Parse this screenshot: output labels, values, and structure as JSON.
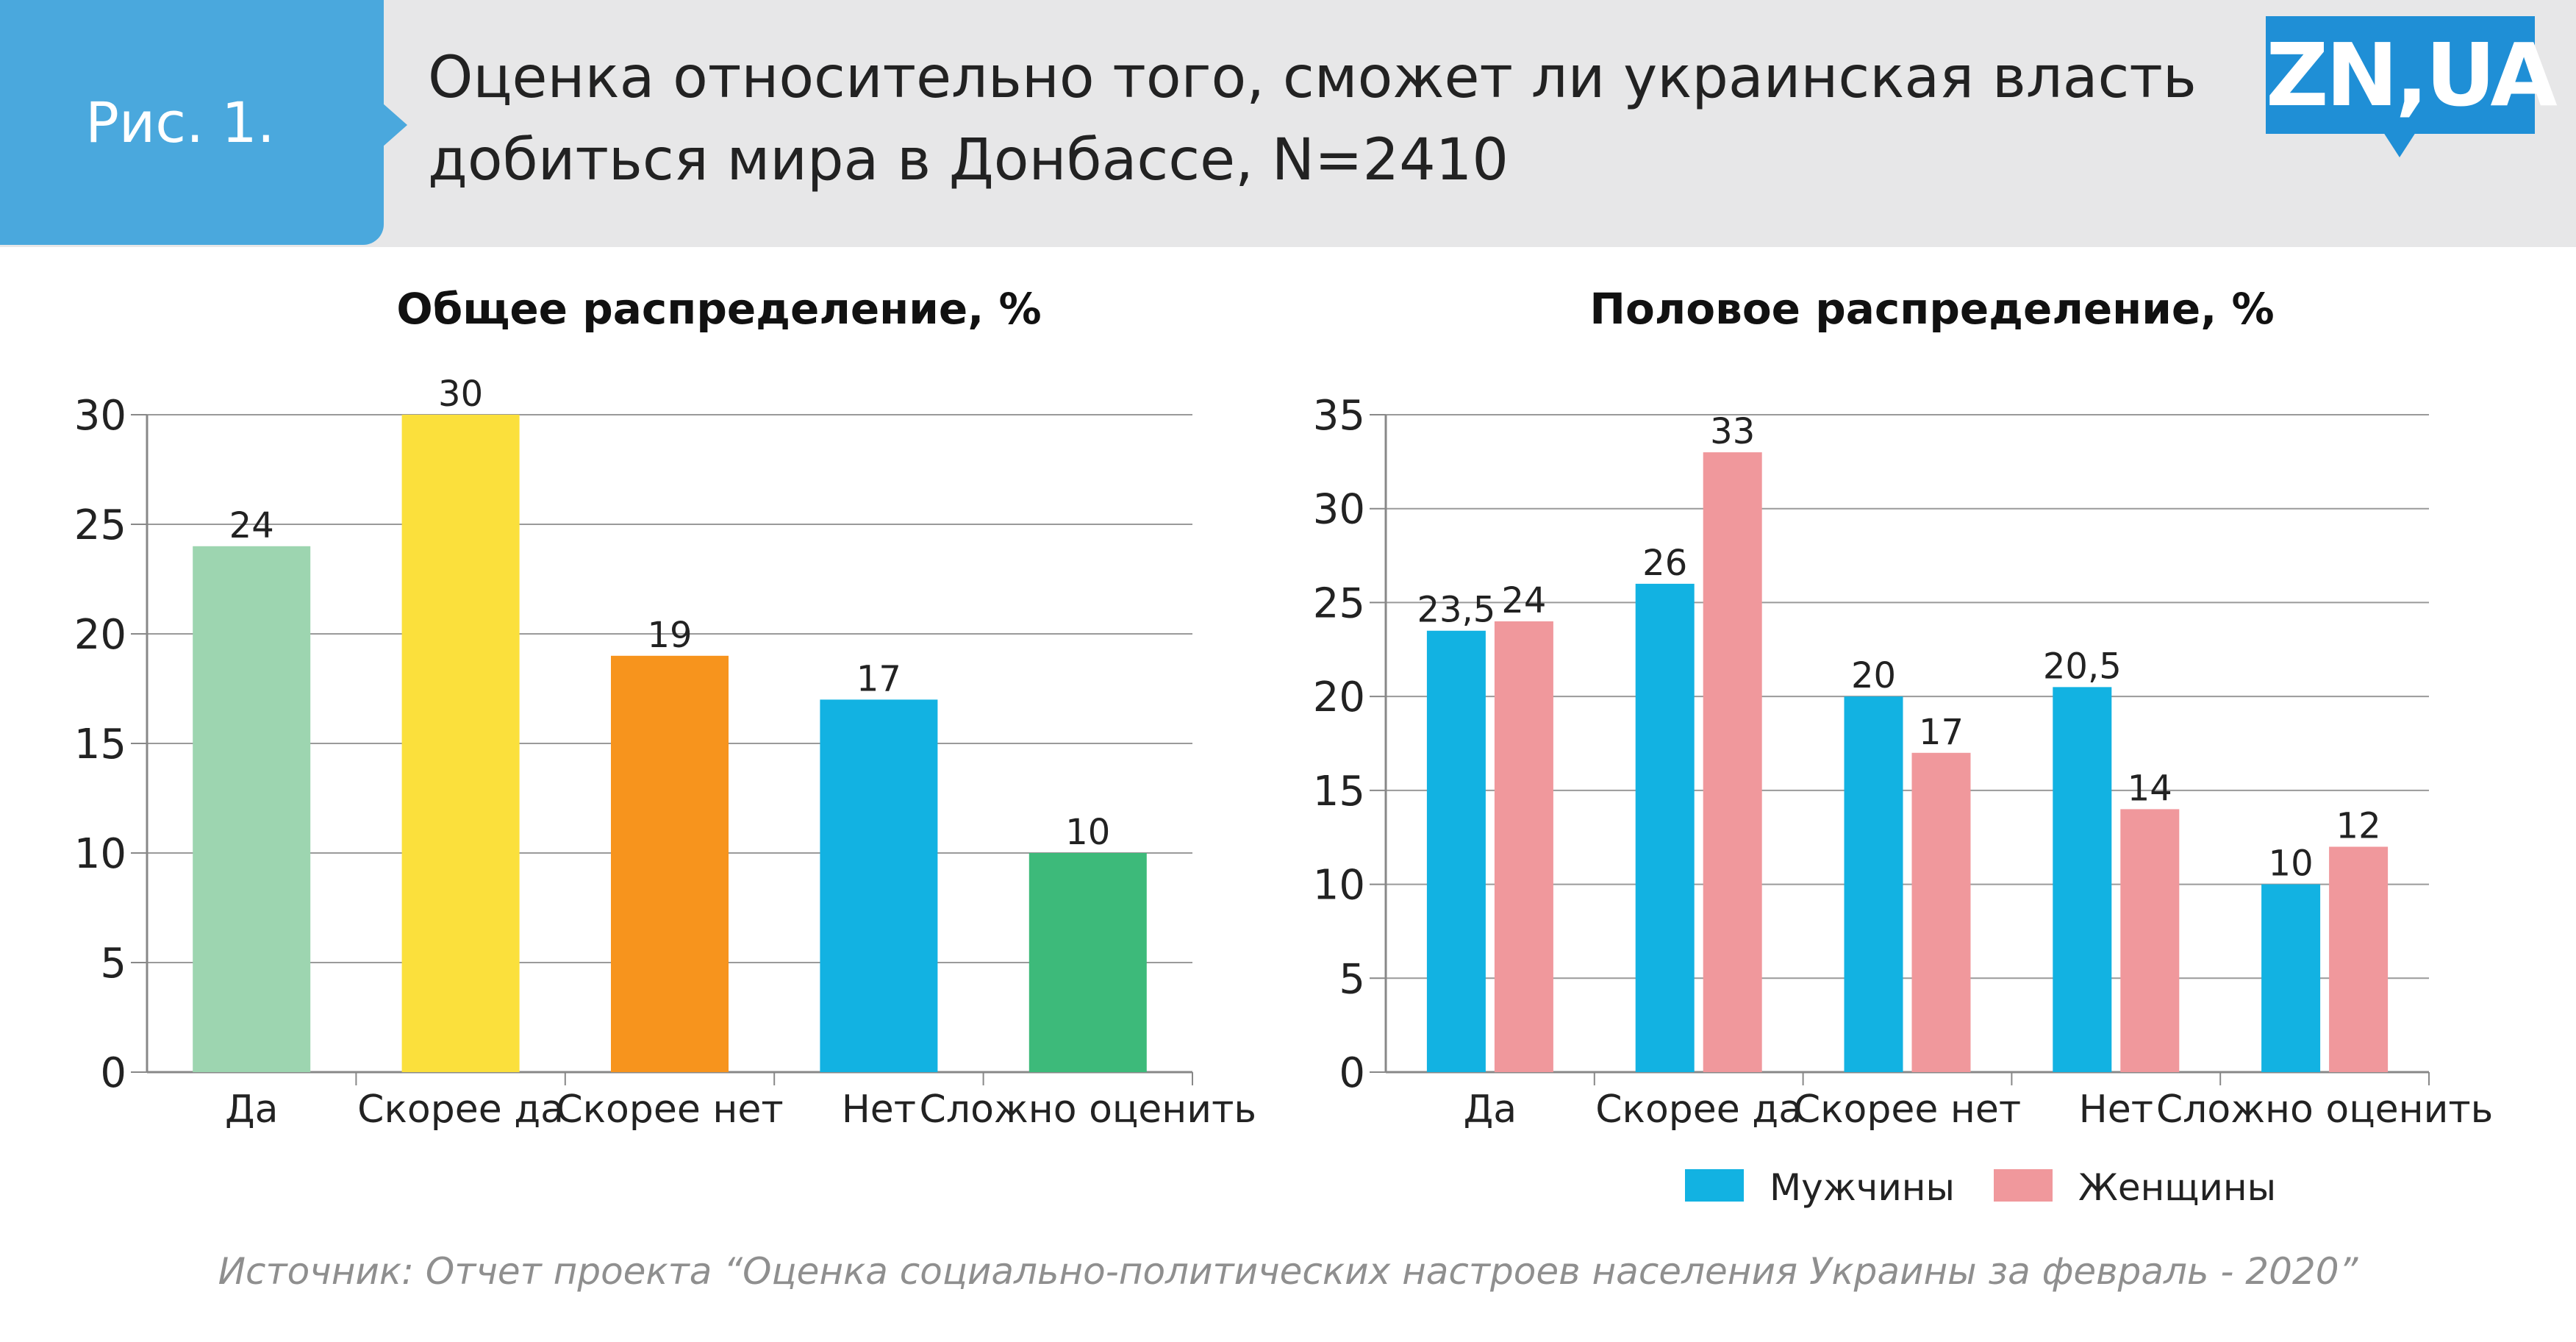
{
  "header": {
    "figure_label": "Рис. 1.",
    "title_line1": "Оценка относительно того, сможет ли украинская власть",
    "title_line2": "добиться мира в Донбассе, N=2410",
    "logo_text": "ZN,UA"
  },
  "source": "Источник: Отчет проекта “Оценка социально-политических настроев населения Украины за февраль - 2020”",
  "colors": {
    "header_bg": "#e7e7e8",
    "badge": "#4aa8dd",
    "logo": "#1f8fd6",
    "men": "#12b2e2",
    "women": "#f0989c"
  },
  "chart_data": [
    {
      "type": "bar",
      "title": "Общее распределение, %",
      "categories": [
        "Да",
        "Скорее да",
        "Скорее нет",
        "Нет",
        "Сложно оценить"
      ],
      "values": [
        24,
        30,
        19,
        17,
        10
      ],
      "value_labels": [
        "24",
        "30",
        "19",
        "17",
        "10"
      ],
      "colors": [
        "#9dd5b0",
        "#fbe03c",
        "#f7941d",
        "#12b2e2",
        "#3dba7a"
      ],
      "ylim": [
        0,
        30
      ],
      "yticks": [
        0,
        5,
        10,
        15,
        20,
        25,
        30
      ],
      "grid": true,
      "legend": "none"
    },
    {
      "type": "bar",
      "title": "Половое распределение, %",
      "categories": [
        "Да",
        "Скорее да",
        "Скорее нет",
        "Нет",
        "Сложно оценить"
      ],
      "series": [
        {
          "name": "Мужчины",
          "values": [
            23.5,
            26,
            20,
            20.5,
            10
          ],
          "labels": [
            "23,5",
            "26",
            "20",
            "20,5",
            "10"
          ],
          "color": "#12b2e2"
        },
        {
          "name": "Женщины",
          "values": [
            24,
            33,
            17,
            14,
            12
          ],
          "labels": [
            "24",
            "33",
            "17",
            "14",
            "12"
          ],
          "color": "#f0989c"
        }
      ],
      "ylim": [
        0,
        35
      ],
      "yticks": [
        0,
        5,
        10,
        15,
        20,
        25,
        30,
        35
      ],
      "grid": true,
      "legend": "bottom"
    }
  ]
}
